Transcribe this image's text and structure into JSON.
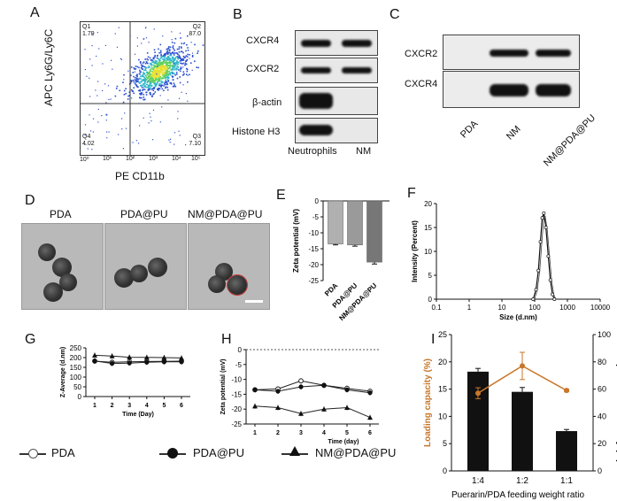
{
  "panels": {
    "A": {
      "label": "A",
      "ylabel": "APC Ly6G/Ly6C",
      "xlabel": "PE CD11b",
      "quadrants": {
        "q1_name": "Q1",
        "q1_val": "1.79",
        "q2_name": "Q2",
        "q2_val": "87.0",
        "q3_name": "Q3",
        "q3_val": "7.10",
        "q4_name": "Q4",
        "q4_val": "4.02"
      },
      "ticks": [
        "10⁰",
        "10¹",
        "10²",
        "10³",
        "10⁴",
        "10⁵"
      ]
    },
    "B": {
      "label": "B",
      "rows": [
        "CXCR4",
        "CXCR2",
        "β-actin",
        "Histone H3"
      ],
      "cols": [
        "Neutrophils",
        "NM"
      ]
    },
    "C": {
      "label": "C",
      "rows": [
        "CXCR2",
        "CXCR4"
      ],
      "cols": [
        "PDA",
        "NM",
        "NM@PDA@PU"
      ]
    },
    "D": {
      "label": "D",
      "titles": [
        "PDA",
        "PDA@PU",
        "NM@PDA@PU"
      ]
    },
    "E": {
      "label": "E"
    },
    "F": {
      "label": "F"
    },
    "G": {
      "label": "G"
    },
    "H": {
      "label": "H"
    },
    "I": {
      "label": "I"
    }
  },
  "legend": {
    "items": [
      "PDA",
      "PDA@PU",
      "NM@PDA@PU"
    ]
  },
  "chart_data": [
    {
      "id": "E",
      "type": "bar",
      "categories": [
        "PDA",
        "PDA@PU",
        "NM@PDA@PU"
      ],
      "values": [
        -13.5,
        -13.8,
        -19.2
      ],
      "errors": [
        0.3,
        0.4,
        0.6
      ],
      "ylabel": "Zeta potential (mV)",
      "ylim": [
        -25,
        0
      ],
      "yticks": [
        "0",
        "-5",
        "-10",
        "-15",
        "-20",
        "-25"
      ]
    },
    {
      "id": "F",
      "type": "line",
      "xlabel": "Size (d.nm)",
      "ylabel": "Intensity (Percent)",
      "xscale": "log",
      "xticks": [
        "0.1",
        "1",
        "10",
        "100",
        "1000",
        "10000"
      ],
      "yticks": [
        "0",
        "5",
        "10",
        "15",
        "20"
      ],
      "ylim": [
        0,
        20
      ],
      "x": [
        90,
        110,
        130,
        150,
        170,
        190,
        220,
        260,
        300,
        350,
        400
      ],
      "y": [
        0,
        2,
        6,
        12,
        17,
        18,
        15,
        9,
        4,
        1,
        0
      ]
    },
    {
      "id": "G",
      "type": "line",
      "xlabel": "Time (Day)",
      "ylabel": "Z-Average (d.nm)",
      "x": [
        1,
        2,
        3,
        4,
        5,
        6
      ],
      "xticks": [
        "1",
        "2",
        "3",
        "4",
        "5",
        "6"
      ],
      "yticks": [
        "0",
        "50",
        "100",
        "150",
        "200",
        "250"
      ],
      "ylim": [
        0,
        250
      ],
      "series": [
        {
          "name": "PDA",
          "values": [
            182,
            176,
            178,
            180,
            181,
            182
          ]
        },
        {
          "name": "PDA@PU",
          "values": [
            183,
            170,
            172,
            176,
            178,
            178
          ]
        },
        {
          "name": "NM@PDA@PU",
          "values": [
            212,
            208,
            202,
            201,
            200,
            198
          ]
        }
      ]
    },
    {
      "id": "H",
      "type": "line",
      "xlabel": "Time (day)",
      "ylabel": "Zeta potential (mV)",
      "x": [
        1,
        2,
        3,
        4,
        5,
        6
      ],
      "xticks": [
        "1",
        "2",
        "3",
        "4",
        "5",
        "6"
      ],
      "yticks": [
        "0",
        "-5",
        "-10",
        "-15",
        "-20",
        "-25"
      ],
      "ylim": [
        -25,
        0
      ],
      "series": [
        {
          "name": "PDA",
          "values": [
            -13.5,
            -13.2,
            -10.5,
            -12.0,
            -13.0,
            -14.0
          ]
        },
        {
          "name": "PDA@PU",
          "values": [
            -13.5,
            -14.0,
            -12.5,
            -12.0,
            -13.5,
            -14.5
          ]
        },
        {
          "name": "NM@PDA@PU",
          "values": [
            -19.0,
            -19.5,
            -21.5,
            -20.0,
            -19.5,
            -22.8
          ]
        }
      ]
    },
    {
      "id": "I",
      "type": "bar",
      "categories": [
        "1:4",
        "1:2",
        "1:1"
      ],
      "values": [
        18.2,
        14.5,
        7.3
      ],
      "errors": [
        0.6,
        0.8,
        0.3
      ],
      "line_values": [
        57,
        77,
        59
      ],
      "line_errors": [
        4,
        10,
        1
      ],
      "ylabel": "Loading capacity (%)",
      "y2label": "Encapsulation efficiency (%)",
      "xlabel": "Puerarin/PDA feeding weight ratio",
      "ylim": [
        0,
        25
      ],
      "y2lim": [
        0,
        100
      ],
      "yticks": [
        "0",
        "5",
        "10",
        "15",
        "20",
        "25"
      ],
      "y2ticks": [
        "0",
        "20",
        "40",
        "60",
        "80",
        "100"
      ],
      "colors": {
        "bar": "#111111",
        "line": "#c8762a",
        "ylabel": "#c8762a"
      }
    }
  ]
}
